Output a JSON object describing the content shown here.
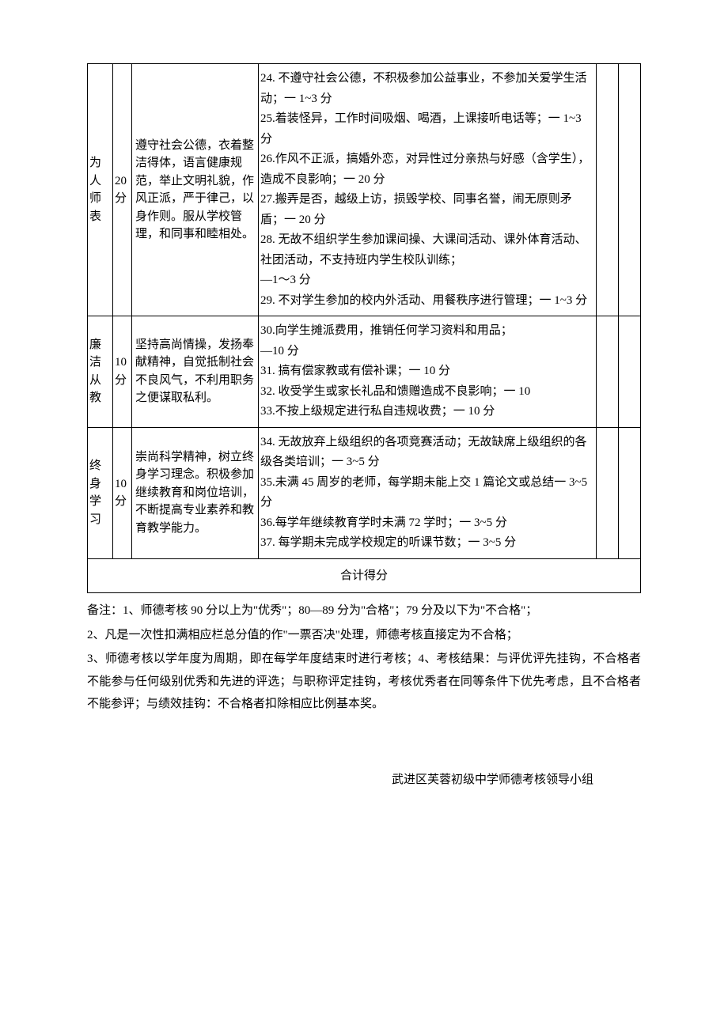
{
  "rows": [
    {
      "category": "为人师表",
      "score": "20 分",
      "desc": "遵守社会公德，衣着整洁得体，语言健康规范，举止文明礼貌，作风正派，严于律己，以身作则。服从学校管理，和同事和睦相处。",
      "criteria": [
        "24. 不遵守社会公德，不积极参加公益事业，不参加关爱学生活动；一 1~3 分",
        "25.着装怪异，工作时间吸烟、喝酒，上课接听电话等；一 1~3 分",
        "26.作风不正派，搞婚外恋，对异性过分亲热与好感（含学生），造成不良影响；一 20 分",
        "27.搬弄是否，越级上访，损毁学校、同事名誉，闹无原则矛盾；一 20 分",
        "28. 无故不组织学生参加课间操、大课间活动、课外体育活动、社团活动，不支持班内学生校队训练；",
        "—1～3 分",
        "29. 不对学生参加的校内外活动、用餐秩序进行管理；一 1~3 分"
      ]
    },
    {
      "category": "廉 洁从教",
      "score": "10 分",
      "desc": "坚持高尚情操，发扬奉献精神，自觉抵制社会不良风气，不利用职务之便谋取私利。",
      "criteria": [
        "30.向学生摊派费用，推销任何学习资料和用品；",
        "—10 分",
        "31. 搞有偿家教或有偿补课；一 10 分",
        "32. 收受学生或家长礼品和馈赠造成不良影响；一 10",
        "33.不按上级规定进行私自违规收费；一 10 分"
      ]
    },
    {
      "category": "终 身学习",
      "score": "10 分",
      "desc": "崇尚科学精神，树立终身学习理念。积极参加继续教育和岗位培训，不断提高专业素养和教育教学能力。",
      "criteria": [
        "34. 无故放弃上级组织的各项竞赛活动；无故缺席上级组织的各级各类培训；一 3~5 分",
        "35.未满 45 周岁的老师，每学期未能上交 1 篇论文或总结一 3~5 分",
        "36.每学年继续教育学时未满 72 学时；一 3~5 分",
        "37. 每学期未完成学校规定的听课节数；一 3~5 分"
      ]
    }
  ],
  "totalLabel": "合计得分",
  "notes": [
    "备注：1、师德考核 90 分以上为\"优秀\"；80—89 分为\"合格\"；79 分及以下为\"不合格\"；",
    "2、凡是一次性扣满相应栏总分值的作\"一票否决\"处理，师德考核直接定为不合格；",
    "3、师德考核以学年度为周期，即在每学年度结束时进行考核；4、考核结果：与评优评先挂钩，不合格者不能参与任何级别优秀和先进的评选；与职称评定挂钩，考核优秀者在同等条件下优先考虑，且不合格者不能参评；与绩效挂钩：不合格者扣除相应比例基本奖。"
  ],
  "signature": "武进区芙蓉初级中学师德考核领导小组"
}
